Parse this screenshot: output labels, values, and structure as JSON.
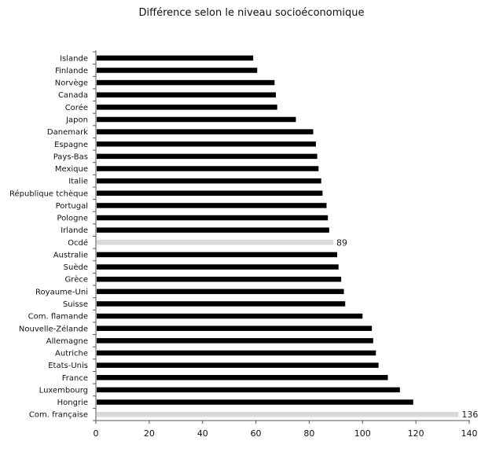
{
  "chart_data": {
    "type": "bar",
    "orientation": "horizontal",
    "title": "Différence selon le niveau socioéconomique",
    "xlabel": "",
    "ylabel": "",
    "xlim": [
      0,
      140
    ],
    "x_ticks": [
      "0",
      "20",
      "40",
      "60",
      "80",
      "100",
      "120",
      "140"
    ],
    "grid": false,
    "legend": "none",
    "categories": [
      "Islande",
      "Finlande",
      "Norvège",
      "Canada",
      "Corée",
      "Japon",
      "Danemark",
      "Espagne",
      "Pays-Bas",
      "Mexique",
      "Italie",
      "République tchèque",
      "Portugal",
      "Pologne",
      "Irlande",
      "Ocdé",
      "Australie",
      "Suède",
      "Grèce",
      "Royaume-Uni",
      "Suisse",
      "Com. flamande",
      "Nouvelle-Zélande",
      "Allemagne",
      "Autriche",
      "Etats-Unis",
      "France",
      "Luxembourg",
      "Hongrie",
      "Com. française"
    ],
    "values": [
      59,
      60.5,
      67,
      67.5,
      68,
      75,
      81.5,
      82.5,
      83,
      83.5,
      84.5,
      85,
      86.5,
      87,
      87.5,
      89,
      90.5,
      91,
      92,
      93,
      93.5,
      100,
      103.5,
      104,
      105,
      106,
      109.5,
      114,
      119,
      136
    ],
    "highlighted": [
      "Ocdé",
      "Com. française"
    ],
    "data_labels": [
      {
        "category": "Ocdé",
        "text": "89"
      },
      {
        "category": "Com. française",
        "text": "136"
      }
    ],
    "colors": {
      "bar": "#000000",
      "highlight": "#d9d9d9",
      "axis": "#555555"
    }
  }
}
